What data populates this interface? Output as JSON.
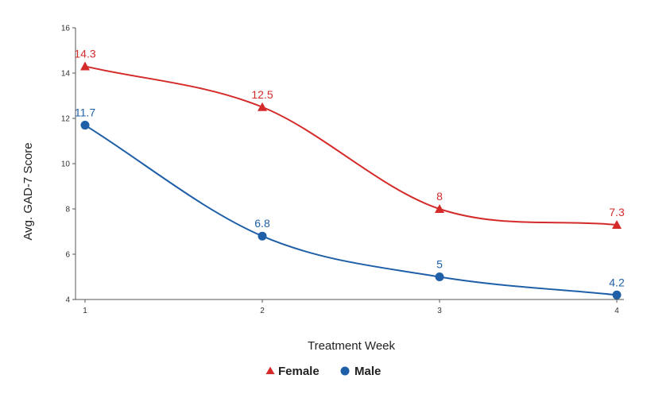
{
  "chart_data": {
    "type": "line",
    "xlabel": "Treatment Week",
    "ylabel": "Avg. GAD-7 Score",
    "x": [
      1,
      2,
      3,
      4
    ],
    "x_tick_labels": [
      "1",
      "2",
      "3",
      "4"
    ],
    "ylim": [
      4,
      16
    ],
    "y_ticks": [
      4,
      6,
      8,
      10,
      12,
      14,
      16
    ],
    "y_tick_labels": [
      "4",
      "6",
      "8",
      "10",
      "12",
      "14",
      "16"
    ],
    "grid": false,
    "legend_position": "bottom",
    "series": [
      {
        "name": "Female",
        "values": [
          14.3,
          12.5,
          8,
          7.3
        ],
        "labels": [
          "14.3",
          "12.5",
          "8",
          "7.3"
        ],
        "color": "#d42a2a",
        "marker": "triangle"
      },
      {
        "name": "Male",
        "values": [
          11.7,
          6.8,
          5,
          4.2
        ],
        "labels": [
          "11.7",
          "6.8",
          "5",
          "4.2"
        ],
        "color": "#1f5fa8",
        "marker": "circle"
      }
    ]
  }
}
